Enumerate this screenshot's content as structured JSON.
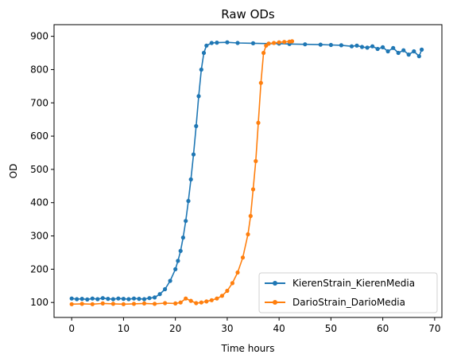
{
  "chart_data": {
    "type": "line",
    "title": "Raw ODs",
    "xlabel": "Time hours",
    "ylabel": "OD",
    "xlim": [
      -3.4,
      71.4
    ],
    "ylim": [
      55,
      935
    ],
    "xticks": [
      0,
      10,
      20,
      30,
      40,
      50,
      60,
      70
    ],
    "yticks": [
      100,
      200,
      300,
      400,
      500,
      600,
      700,
      800,
      900
    ],
    "grid": false,
    "legend_position": "lower-right",
    "series": [
      {
        "name": "KierenStrain_KierenMedia",
        "color": "#1f77b4",
        "marker": "circle",
        "points": [
          [
            0,
            112
          ],
          [
            1,
            110
          ],
          [
            2,
            111
          ],
          [
            3,
            109
          ],
          [
            4,
            112
          ],
          [
            5,
            110
          ],
          [
            6,
            113
          ],
          [
            7,
            111
          ],
          [
            8,
            110
          ],
          [
            9,
            112
          ],
          [
            10,
            111
          ],
          [
            11,
            110
          ],
          [
            12,
            112
          ],
          [
            13,
            111
          ],
          [
            14,
            110
          ],
          [
            15,
            113
          ],
          [
            16,
            115
          ],
          [
            17,
            125
          ],
          [
            18,
            140
          ],
          [
            19,
            165
          ],
          [
            20,
            200
          ],
          [
            20.5,
            225
          ],
          [
            21,
            255
          ],
          [
            21.5,
            295
          ],
          [
            22,
            345
          ],
          [
            22.5,
            405
          ],
          [
            23,
            470
          ],
          [
            23.5,
            545
          ],
          [
            24,
            630
          ],
          [
            24.5,
            720
          ],
          [
            25,
            800
          ],
          [
            25.5,
            850
          ],
          [
            26,
            872
          ],
          [
            27,
            880
          ],
          [
            28,
            881
          ],
          [
            30,
            882
          ],
          [
            32,
            880
          ],
          [
            35,
            879
          ],
          [
            38,
            878
          ],
          [
            40,
            878
          ],
          [
            42,
            877
          ],
          [
            45,
            876
          ],
          [
            48,
            875
          ],
          [
            50,
            874
          ],
          [
            52,
            873
          ],
          [
            54,
            870
          ],
          [
            55,
            872
          ],
          [
            56,
            868
          ],
          [
            57,
            866
          ],
          [
            58,
            870
          ],
          [
            59,
            862
          ],
          [
            60,
            867
          ],
          [
            61,
            855
          ],
          [
            62,
            865
          ],
          [
            63,
            850
          ],
          [
            64,
            858
          ],
          [
            65,
            845
          ],
          [
            66,
            855
          ],
          [
            67,
            840
          ],
          [
            67.5,
            860
          ]
        ]
      },
      {
        "name": "DarioStrain_DarioMedia",
        "color": "#ff7f0e",
        "marker": "circle",
        "points": [
          [
            0,
            95
          ],
          [
            2,
            96
          ],
          [
            4,
            95
          ],
          [
            6,
            97
          ],
          [
            8,
            96
          ],
          [
            10,
            95
          ],
          [
            12,
            96
          ],
          [
            14,
            97
          ],
          [
            16,
            96
          ],
          [
            18,
            98
          ],
          [
            20,
            97
          ],
          [
            21,
            100
          ],
          [
            22,
            112
          ],
          [
            23,
            105
          ],
          [
            24,
            98
          ],
          [
            25,
            100
          ],
          [
            26,
            103
          ],
          [
            27,
            107
          ],
          [
            28,
            112
          ],
          [
            29,
            120
          ],
          [
            30,
            135
          ],
          [
            31,
            158
          ],
          [
            32,
            190
          ],
          [
            33,
            235
          ],
          [
            34,
            305
          ],
          [
            34.5,
            360
          ],
          [
            35,
            440
          ],
          [
            35.5,
            525
          ],
          [
            36,
            640
          ],
          [
            36.5,
            760
          ],
          [
            37,
            850
          ],
          [
            37.5,
            872
          ],
          [
            38,
            878
          ],
          [
            39,
            880
          ],
          [
            40,
            882
          ],
          [
            41,
            883
          ],
          [
            42,
            884
          ],
          [
            42.5,
            885
          ]
        ]
      }
    ]
  }
}
